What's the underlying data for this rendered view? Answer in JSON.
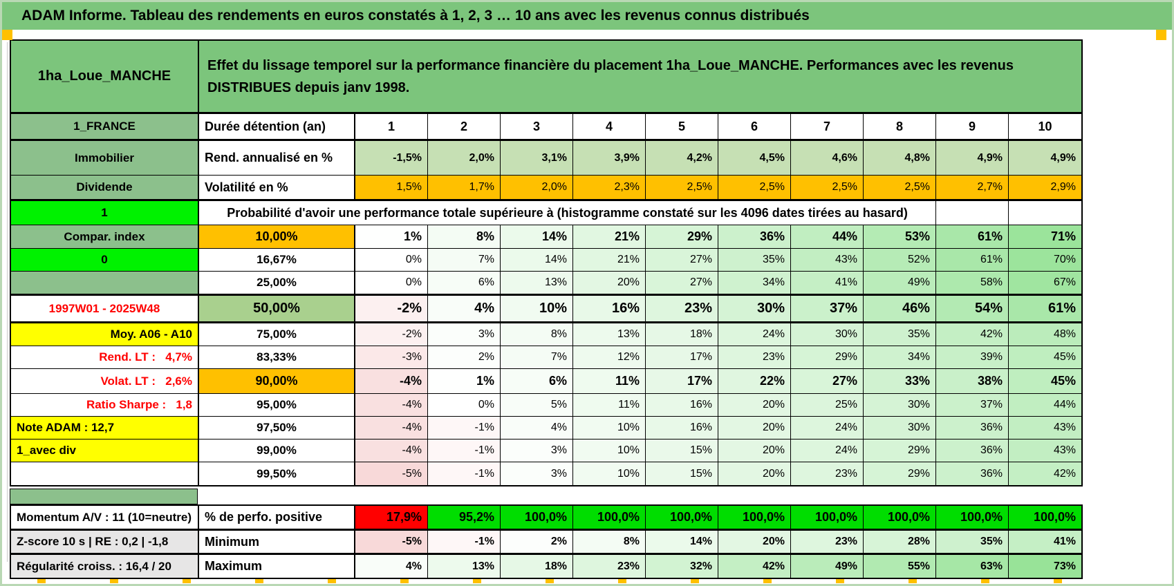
{
  "page_title": "ADAM Informe. Tableau des rendements en euros constatés à 1, 2, 3 … 10 ans avec les revenus connus distribués",
  "header": {
    "name": "1ha_Loue_MANCHE",
    "description": "Effet du lissage temporel sur la performance financière du placement 1ha_Loue_MANCHE. Performances avec les revenus DISTRIBUES depuis janv 1998."
  },
  "top": {
    "region_label": "1_FRANCE",
    "duration_label": "Durée détention (an)",
    "durations": [
      "1",
      "2",
      "3",
      "4",
      "5",
      "6",
      "7",
      "8",
      "9",
      "10"
    ],
    "asset_label": "Immobilier",
    "rend_label": "Rend. annualisé en %",
    "rend_values": [
      "-1,5%",
      "2,0%",
      "3,1%",
      "3,9%",
      "4,2%",
      "4,5%",
      "4,6%",
      "4,8%",
      "4,9%",
      "4,9%"
    ],
    "dividend_label": "Dividende",
    "vol_label": "Volatilité en %",
    "vol_values": [
      "1,5%",
      "1,7%",
      "2,0%",
      "2,3%",
      "2,5%",
      "2,5%",
      "2,5%",
      "2,5%",
      "2,7%",
      "2,9%"
    ]
  },
  "probability": {
    "flag": "1",
    "heading": "Probabilité d'avoir une performance totale supérieure à (histogramme constaté sur les 4096 dates tirées au hasard)",
    "rows": [
      {
        "left": "Compar. index",
        "left_style": "green",
        "left_align": "center",
        "threshold": "10,00%",
        "threshold_style": "orange",
        "size": "mid",
        "bold": true,
        "values": [
          "1%",
          "8%",
          "14%",
          "21%",
          "29%",
          "36%",
          "44%",
          "53%",
          "61%",
          "71%"
        ]
      },
      {
        "left": "0",
        "left_style": "flag",
        "left_align": "center",
        "threshold": "16,67%",
        "threshold_style": "white",
        "size": "small",
        "bold": false,
        "values": [
          "0%",
          "7%",
          "14%",
          "21%",
          "27%",
          "35%",
          "43%",
          "52%",
          "61%",
          "70%"
        ]
      },
      {
        "left": "",
        "left_style": "green",
        "left_align": "center",
        "threshold": "25,00%",
        "threshold_style": "white",
        "size": "small",
        "bold": false,
        "values": [
          "0%",
          "6%",
          "13%",
          "20%",
          "27%",
          "34%",
          "41%",
          "49%",
          "58%",
          "67%"
        ]
      },
      {
        "left": "1997W01 - 2025W48",
        "left_style": "red",
        "left_align": "center",
        "threshold": "50,00%",
        "threshold_style": "median",
        "size": "big",
        "bold": true,
        "values": [
          "-2%",
          "4%",
          "10%",
          "16%",
          "23%",
          "30%",
          "37%",
          "46%",
          "54%",
          "61%"
        ]
      },
      {
        "left": "Moy. A06 - A10",
        "left_style": "yellow",
        "left_align": "right",
        "threshold": "75,00%",
        "threshold_style": "white",
        "size": "small",
        "bold": false,
        "values": [
          "-2%",
          "3%",
          "8%",
          "13%",
          "18%",
          "24%",
          "30%",
          "35%",
          "42%",
          "48%"
        ]
      },
      {
        "left": "Rend. LT :   4,7%",
        "left_style": "red",
        "left_align": "right",
        "threshold": "83,33%",
        "threshold_style": "white",
        "size": "small",
        "bold": false,
        "values": [
          "-3%",
          "2%",
          "7%",
          "12%",
          "17%",
          "23%",
          "29%",
          "34%",
          "39%",
          "45%"
        ]
      },
      {
        "left": "Volat. LT :   2,6%",
        "left_style": "red",
        "left_align": "right",
        "threshold": "90,00%",
        "threshold_style": "orange",
        "size": "mid",
        "bold": true,
        "values": [
          "-4%",
          "1%",
          "6%",
          "11%",
          "17%",
          "22%",
          "27%",
          "33%",
          "38%",
          "45%"
        ]
      },
      {
        "left": "Ratio Sharpe :   1,8",
        "left_style": "red",
        "left_align": "right",
        "threshold": "95,00%",
        "threshold_style": "white",
        "size": "small",
        "bold": false,
        "values": [
          "-4%",
          "0%",
          "5%",
          "11%",
          "16%",
          "20%",
          "25%",
          "30%",
          "37%",
          "44%"
        ]
      },
      {
        "left": "Note ADAM : 12,7",
        "left_style": "yellow",
        "left_align": "left",
        "threshold": "97,50%",
        "threshold_style": "white",
        "size": "small",
        "bold": false,
        "values": [
          "-4%",
          "-1%",
          "4%",
          "10%",
          "16%",
          "20%",
          "24%",
          "30%",
          "36%",
          "43%"
        ]
      },
      {
        "left": "1_avec div",
        "left_style": "yellow",
        "left_align": "left",
        "threshold": "99,00%",
        "threshold_style": "white",
        "size": "small",
        "bold": false,
        "values": [
          "-4%",
          "-1%",
          "3%",
          "10%",
          "15%",
          "20%",
          "24%",
          "29%",
          "36%",
          "43%"
        ]
      },
      {
        "left": "",
        "left_style": "white",
        "left_align": "center",
        "threshold": "99,50%",
        "threshold_style": "white",
        "size": "small",
        "bold": false,
        "values": [
          "-5%",
          "-1%",
          "3%",
          "10%",
          "15%",
          "20%",
          "23%",
          "29%",
          "36%",
          "42%"
        ]
      }
    ]
  },
  "summary": {
    "rows": [
      {
        "left": "Momentum A/V : 11 (10=neutre)",
        "left_style": "white",
        "label": "% de perfo. positive",
        "type": "perfo",
        "values": [
          "17,9%",
          "95,2%",
          "100,0%",
          "100,0%",
          "100,0%",
          "100,0%",
          "100,0%",
          "100,0%",
          "100,0%",
          "100,0%"
        ]
      },
      {
        "left": "Z-score 10 s | RE : 0,2 | -1,8",
        "left_style": "gray",
        "label": "Minimum",
        "type": "grad",
        "values": [
          "-5%",
          "-1%",
          "2%",
          "8%",
          "14%",
          "20%",
          "23%",
          "28%",
          "35%",
          "41%"
        ]
      },
      {
        "left": "Régularité croiss. : 16,4 / 20",
        "left_style": "gray",
        "label": "Maximum",
        "type": "grad",
        "values": [
          "4%",
          "13%",
          "18%",
          "23%",
          "32%",
          "42%",
          "49%",
          "55%",
          "63%",
          "73%"
        ]
      }
    ]
  },
  "colors": {
    "title_green": "#7cc57c",
    "label_green": "#8cc08c",
    "light_green": "#c6e0b4",
    "median_green": "#a9d08e",
    "orange": "#ffc000",
    "yellow": "#ffff00",
    "flag_green": "#00f200",
    "perfo_green": "#00dd00",
    "perfo_red": "#ff0000",
    "gray_label": "#e7e6e6",
    "red_text": "#ff0000",
    "marker_red": "#ff0000",
    "scale_pos_max": "#95e295",
    "scale_pos_domain": 75,
    "scale_neg_max": "#f0b2b2",
    "scale_neg_domain": 10
  }
}
